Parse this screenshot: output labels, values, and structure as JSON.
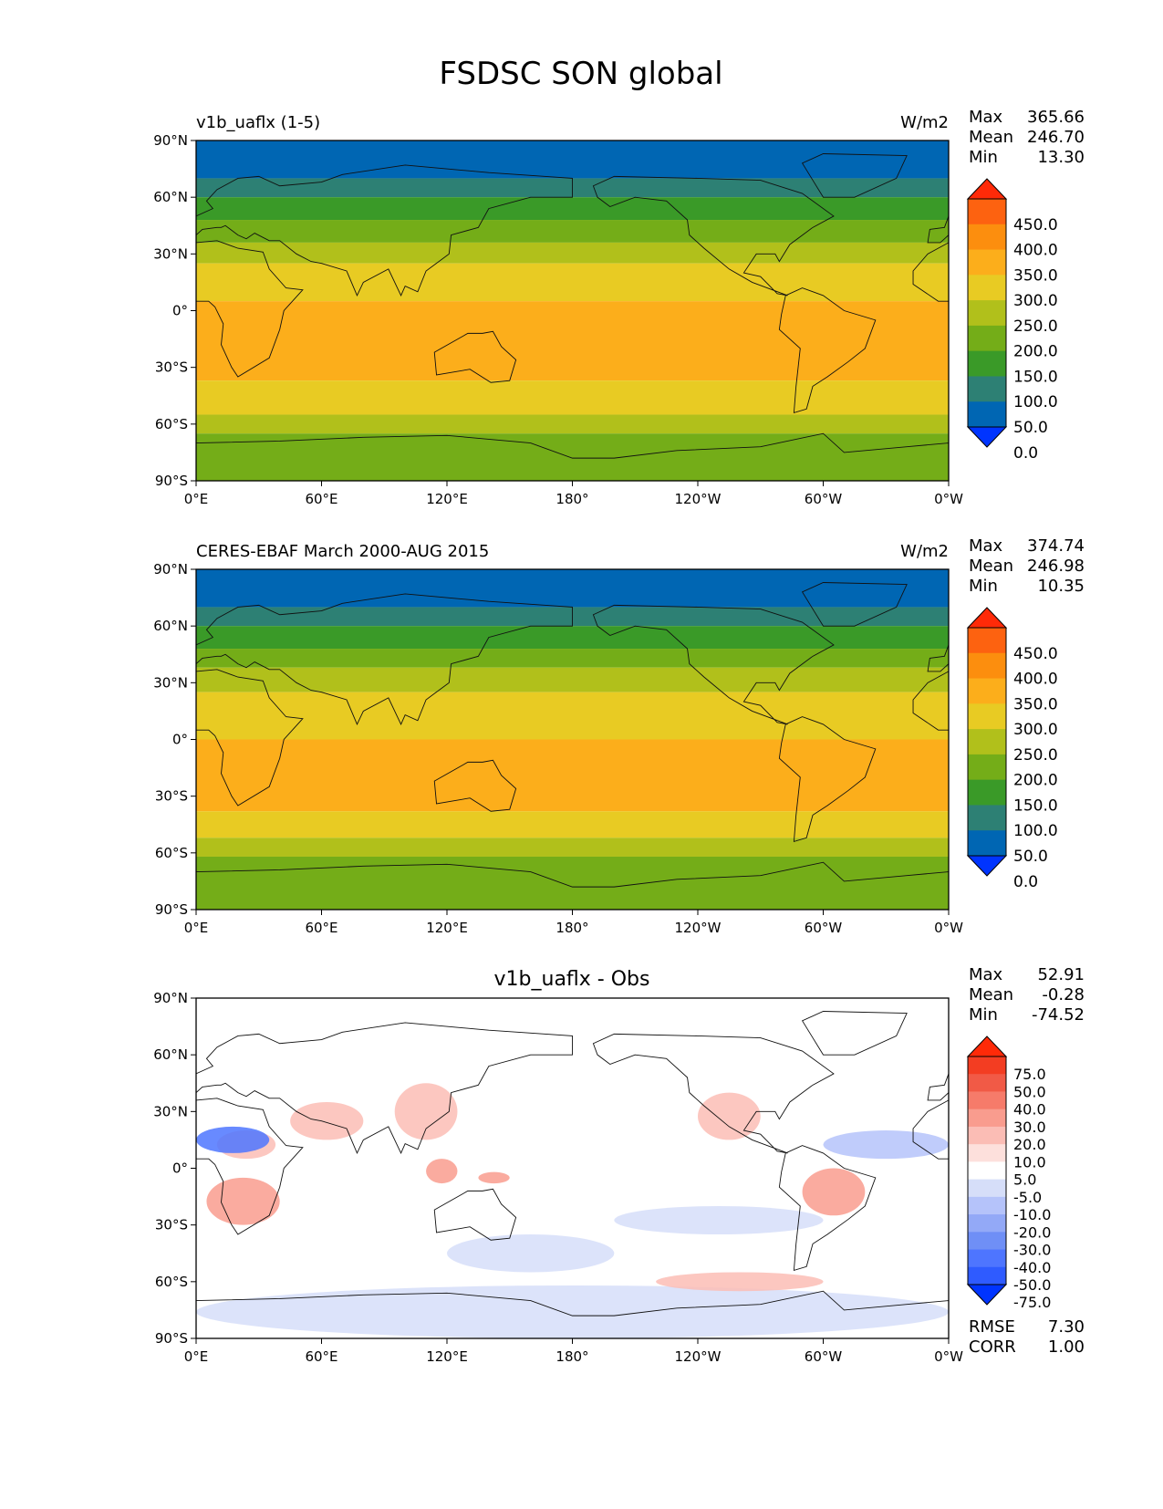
{
  "title": "FSDSC SON global",
  "colors": {
    "abs": [
      "#0034ff",
      "#0066b3",
      "#2d8074",
      "#3a9a28",
      "#74ad18",
      "#b1c01b",
      "#e8cb23",
      "#fcae1b",
      "#fc8e0e",
      "#fd6210",
      "#ff2a08"
    ],
    "diff": [
      "#0034ff",
      "#2f5bff",
      "#4e75ff",
      "#6f8ff6",
      "#93a9f7",
      "#b5c3fa",
      "#d6def9",
      "#ffffff",
      "#fde0dc",
      "#fbbdb5",
      "#f99c8e",
      "#f67b6a",
      "#f15a46",
      "#f33d22",
      "#ff2a08"
    ]
  },
  "chart_data": [
    {
      "type": "heatmap",
      "name": "v1b_uaflx (1-5)",
      "units": "W/m2",
      "xlim": [
        0,
        360
      ],
      "ylim": [
        -90,
        90
      ],
      "xticks": [
        "0°E",
        "60°E",
        "120°E",
        "180°",
        "120°W",
        "60°W",
        "0°W"
      ],
      "yticks": [
        "90°N",
        "60°N",
        "30°N",
        "0°",
        "30°S",
        "60°S",
        "90°S"
      ],
      "stats": [
        {
          "label": "Max",
          "value": "365.66"
        },
        {
          "label": "Mean",
          "value": "246.70"
        },
        {
          "label": "Min",
          "value": "13.30"
        }
      ],
      "colorbar": {
        "levels": [
          0,
          50,
          100,
          150,
          200,
          250,
          300,
          350,
          400,
          450
        ],
        "labels": [
          "450.0",
          "400.0",
          "350.0",
          "300.0",
          "250.0",
          "200.0",
          "150.0",
          "100.0",
          "50.0",
          "0.0"
        ]
      },
      "zonal_bands": [
        {
          "lat_range": [
            70,
            90
          ],
          "value": 25
        },
        {
          "lat_range": [
            60,
            70
          ],
          "value": 75
        },
        {
          "lat_range": [
            48,
            60
          ],
          "value": 125
        },
        {
          "lat_range": [
            36,
            48
          ],
          "value": 175
        },
        {
          "lat_range": [
            25,
            36
          ],
          "value": 225
        },
        {
          "lat_range": [
            5,
            25
          ],
          "value": 275
        },
        {
          "lat_range": [
            -37,
            5
          ],
          "value": 325
        },
        {
          "lat_range": [
            -55,
            -37
          ],
          "value": 275
        },
        {
          "lat_range": [
            -65,
            -55
          ],
          "value": 225
        },
        {
          "lat_range": [
            -90,
            -65
          ],
          "value": 175
        }
      ]
    },
    {
      "type": "heatmap",
      "name": "CERES-EBAF March 2000-AUG 2015",
      "units": "W/m2",
      "xlim": [
        0,
        360
      ],
      "ylim": [
        -90,
        90
      ],
      "xticks": [
        "0°E",
        "60°E",
        "120°E",
        "180°",
        "120°W",
        "60°W",
        "0°W"
      ],
      "yticks": [
        "90°N",
        "60°N",
        "30°N",
        "0°",
        "30°S",
        "60°S",
        "90°S"
      ],
      "stats": [
        {
          "label": "Max",
          "value": "374.74"
        },
        {
          "label": "Mean",
          "value": "246.98"
        },
        {
          "label": "Min",
          "value": "10.35"
        }
      ],
      "colorbar": {
        "levels": [
          0,
          50,
          100,
          150,
          200,
          250,
          300,
          350,
          400,
          450
        ],
        "labels": [
          "450.0",
          "400.0",
          "350.0",
          "300.0",
          "250.0",
          "200.0",
          "150.0",
          "100.0",
          "50.0",
          "0.0"
        ]
      },
      "zonal_bands": [
        {
          "lat_range": [
            70,
            90
          ],
          "value": 25
        },
        {
          "lat_range": [
            60,
            70
          ],
          "value": 75
        },
        {
          "lat_range": [
            48,
            60
          ],
          "value": 125
        },
        {
          "lat_range": [
            38,
            48
          ],
          "value": 175
        },
        {
          "lat_range": [
            25,
            38
          ],
          "value": 225
        },
        {
          "lat_range": [
            0,
            25
          ],
          "value": 275
        },
        {
          "lat_range": [
            -38,
            0
          ],
          "value": 325
        },
        {
          "lat_range": [
            -52,
            -38
          ],
          "value": 275
        },
        {
          "lat_range": [
            -62,
            -52
          ],
          "value": 225
        },
        {
          "lat_range": [
            -90,
            -62
          ],
          "value": 175
        }
      ]
    },
    {
      "type": "heatmap",
      "name": "v1b_uaflx - Obs",
      "units": "",
      "xlim": [
        0,
        360
      ],
      "ylim": [
        -90,
        90
      ],
      "xticks": [
        "0°E",
        "60°E",
        "120°E",
        "180°",
        "120°W",
        "60°W",
        "0°W"
      ],
      "yticks": [
        "90°N",
        "60°N",
        "30°N",
        "0°",
        "30°S",
        "60°S",
        "90°S"
      ],
      "stats": [
        {
          "label": "Max",
          "value": "52.91"
        },
        {
          "label": "Mean",
          "value": "-0.28"
        },
        {
          "label": "Min",
          "value": "-74.52"
        }
      ],
      "extra_stats": [
        {
          "label": "RMSE",
          "value": "7.30"
        },
        {
          "label": "CORR",
          "value": "1.00"
        }
      ],
      "colorbar": {
        "levels": [
          -75,
          -50,
          -40,
          -30,
          -20,
          -10,
          -5,
          5,
          10,
          20,
          30,
          40,
          50,
          75
        ],
        "labels": [
          "75.0",
          "50.0",
          "40.0",
          "30.0",
          "20.0",
          "10.0",
          "5.0",
          "-5.0",
          "-10.0",
          "-20.0",
          "-30.0",
          "-40.0",
          "-50.0",
          "-75.0"
        ]
      },
      "anomalies": [
        {
          "lon": [
            5,
            40
          ],
          "lat": [
            -30,
            -5
          ],
          "value": 25
        },
        {
          "lon": [
            10,
            38
          ],
          "lat": [
            5,
            20
          ],
          "value": 12
        },
        {
          "lon": [
            0,
            35
          ],
          "lat": [
            8,
            22
          ],
          "value": -45
        },
        {
          "lon": [
            45,
            80
          ],
          "lat": [
            15,
            35
          ],
          "value": 15
        },
        {
          "lon": [
            95,
            125
          ],
          "lat": [
            15,
            45
          ],
          "value": 15
        },
        {
          "lon": [
            110,
            125
          ],
          "lat": [
            -8,
            5
          ],
          "value": 25
        },
        {
          "lon": [
            135,
            150
          ],
          "lat": [
            -8,
            -2
          ],
          "value": 20
        },
        {
          "lon": [
            290,
            320
          ],
          "lat": [
            -25,
            0
          ],
          "value": 25
        },
        {
          "lon": [
            240,
            270
          ],
          "lat": [
            15,
            40
          ],
          "value": 12
        },
        {
          "lon": [
            300,
            360
          ],
          "lat": [
            5,
            20
          ],
          "value": -15
        },
        {
          "lon": [
            0,
            360
          ],
          "lat": [
            -90,
            -62
          ],
          "value": -10
        },
        {
          "lon": [
            120,
            200
          ],
          "lat": [
            -55,
            -35
          ],
          "value": -8
        },
        {
          "lon": [
            200,
            300
          ],
          "lat": [
            -20,
            -35
          ],
          "value": -8
        },
        {
          "lon": [
            220,
            300
          ],
          "lat": [
            -65,
            -55
          ],
          "value": 15
        }
      ]
    }
  ]
}
